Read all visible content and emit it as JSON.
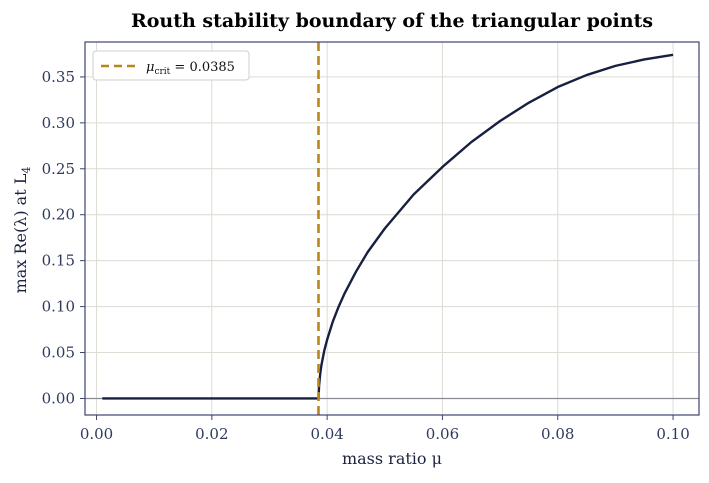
{
  "chart_data": {
    "type": "line",
    "title": "Routh stability boundary of the triangular points",
    "xlabel": "mass ratio  μ",
    "ylabel": "max Re(λ) at L",
    "ylabel_subscript": "4",
    "xlim": [
      -0.002,
      0.1045
    ],
    "ylim": [
      -0.018,
      0.388
    ],
    "xticks": [
      0.0,
      0.02,
      0.04,
      0.06,
      0.08,
      0.1
    ],
    "xtick_labels": [
      "0.00",
      "0.02",
      "0.04",
      "0.06",
      "0.08",
      "0.10"
    ],
    "yticks": [
      0.0,
      0.05,
      0.1,
      0.15,
      0.2,
      0.25,
      0.3,
      0.35
    ],
    "ytick_labels": [
      "0.00",
      "0.05",
      "0.10",
      "0.15",
      "0.20",
      "0.25",
      "0.30",
      "0.35"
    ],
    "grid": true,
    "legend_position": "top-left",
    "series": [
      {
        "name": "",
        "color": "#172040",
        "x": [
          0.001,
          0.005,
          0.01,
          0.015,
          0.02,
          0.025,
          0.03,
          0.035,
          0.0385,
          0.0386,
          0.0388,
          0.039,
          0.0395,
          0.04,
          0.041,
          0.042,
          0.043,
          0.045,
          0.047,
          0.05,
          0.055,
          0.06,
          0.065,
          0.07,
          0.075,
          0.08,
          0.085,
          0.09,
          0.095,
          0.1
        ],
        "y": [
          0.0,
          0.0,
          0.0,
          0.0,
          0.0,
          0.0,
          0.0,
          0.0,
          0.0,
          0.014,
          0.027,
          0.036,
          0.052,
          0.064,
          0.084,
          0.1,
          0.114,
          0.138,
          0.159,
          0.185,
          0.222,
          0.252,
          0.279,
          0.302,
          0.322,
          0.339,
          0.352,
          0.362,
          0.369,
          0.374
        ]
      }
    ],
    "critical_line": {
      "label_symbol": "μ",
      "label_subscript": "crit",
      "label_value": " = 0.0385",
      "x": 0.0385,
      "color": "#b8861b"
    },
    "zero_line_color": "#8a8a92",
    "frame_color": "#3d4470",
    "grid_color": "#dcdcd4"
  }
}
